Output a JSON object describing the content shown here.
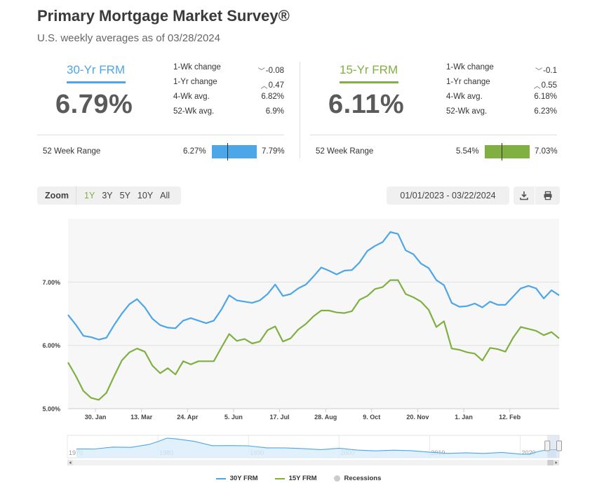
{
  "header": {
    "title": "Primary Mortgage Market Survey®",
    "subtitle": "U.S. weekly averages as of 03/28/2024"
  },
  "rates": [
    {
      "name": "30-Yr FRM",
      "color": "#4da6e8",
      "value": "6.79%",
      "stats": [
        {
          "label": "1-Wk change",
          "dir": "down",
          "value": "-0.08"
        },
        {
          "label": "1-Yr change",
          "dir": "up",
          "value": "0.47"
        },
        {
          "label": "4-Wk avg.",
          "dir": "",
          "value": "6.82%"
        },
        {
          "label": "52-Wk avg.",
          "dir": "",
          "value": "6.9%"
        }
      ],
      "range_label": "52 Week Range",
      "range_min": "6.27%",
      "range_max": "7.79%",
      "range_current": 6.79,
      "range_low": 6.27,
      "range_high": 7.79
    },
    {
      "name": "15-Yr FRM",
      "color": "#7fb041",
      "value": "6.11%",
      "stats": [
        {
          "label": "1-Wk change",
          "dir": "down",
          "value": "-0.1"
        },
        {
          "label": "1-Yr change",
          "dir": "up",
          "value": "0.55"
        },
        {
          "label": "4-Wk avg.",
          "dir": "",
          "value": "6.18%"
        },
        {
          "label": "52-Wk avg.",
          "dir": "",
          "value": "6.23%"
        }
      ],
      "range_label": "52 Week Range",
      "range_min": "5.54%",
      "range_max": "7.03%",
      "range_current": 6.11,
      "range_low": 5.54,
      "range_high": 7.03
    }
  ],
  "toolbar": {
    "zoom_label": "Zoom",
    "zoom_options": [
      "1Y",
      "3Y",
      "5Y",
      "10Y",
      "All"
    ],
    "zoom_active": "1Y",
    "date_range": "01/01/2023 - 03/22/2024",
    "download_icon": "download-icon",
    "print_icon": "print-icon"
  },
  "chart_data": {
    "type": "line",
    "x_start": "2023-01-05",
    "x_end": "2024-03-28",
    "x_ticks": [
      {
        "date": "2023-01-30",
        "label": "30. Jan"
      },
      {
        "date": "2023-03-13",
        "label": "13. Mar"
      },
      {
        "date": "2023-04-24",
        "label": "24. Apr"
      },
      {
        "date": "2023-06-05",
        "label": "5. Jun"
      },
      {
        "date": "2023-07-17",
        "label": "17. Jul"
      },
      {
        "date": "2023-08-28",
        "label": "28. Aug"
      },
      {
        "date": "2023-10-09",
        "label": "9. Oct"
      },
      {
        "date": "2023-11-20",
        "label": "20. Nov"
      },
      {
        "date": "2024-01-01",
        "label": "1. Jan"
      },
      {
        "date": "2024-02-12",
        "label": "12. Feb"
      }
    ],
    "y_ticks": [
      {
        "value": 5.0,
        "label": "5.00%"
      },
      {
        "value": 6.0,
        "label": "6.00%"
      },
      {
        "value": 7.0,
        "label": "7.00%"
      }
    ],
    "ylim": [
      5.0,
      8.0
    ],
    "grid": true,
    "series": [
      {
        "name": "30Y FRM",
        "color": "#4da6e8",
        "values": [
          6.48,
          6.33,
          6.15,
          6.13,
          6.09,
          6.12,
          6.32,
          6.5,
          6.65,
          6.73,
          6.6,
          6.42,
          6.32,
          6.28,
          6.27,
          6.39,
          6.43,
          6.39,
          6.35,
          6.39,
          6.57,
          6.79,
          6.71,
          6.69,
          6.67,
          6.71,
          6.81,
          6.96,
          6.78,
          6.81,
          6.9,
          6.96,
          7.09,
          7.23,
          7.18,
          7.12,
          7.18,
          7.19,
          7.31,
          7.49,
          7.57,
          7.63,
          7.79,
          7.76,
          7.5,
          7.44,
          7.29,
          7.22,
          7.03,
          6.95,
          6.67,
          6.61,
          6.62,
          6.66,
          6.6,
          6.69,
          6.64,
          6.64,
          6.77,
          6.9,
          6.94,
          6.9,
          6.74,
          6.87,
          6.79
        ]
      },
      {
        "name": "15Y FRM",
        "color": "#7fb041",
        "values": [
          5.73,
          5.52,
          5.28,
          5.17,
          5.14,
          5.25,
          5.51,
          5.76,
          5.89,
          5.95,
          5.9,
          5.68,
          5.56,
          5.64,
          5.54,
          5.75,
          5.7,
          5.75,
          5.75,
          5.75,
          5.97,
          6.18,
          6.07,
          6.1,
          6.03,
          6.06,
          6.24,
          6.3,
          6.06,
          6.11,
          6.25,
          6.34,
          6.46,
          6.55,
          6.55,
          6.52,
          6.51,
          6.54,
          6.72,
          6.78,
          6.89,
          6.92,
          7.03,
          7.03,
          6.81,
          6.76,
          6.69,
          6.56,
          6.29,
          6.38,
          5.95,
          5.93,
          5.89,
          5.87,
          5.76,
          5.96,
          5.94,
          5.9,
          6.12,
          6.29,
          6.26,
          6.23,
          6.16,
          6.21,
          6.11
        ]
      }
    ]
  },
  "navigator": {
    "x_labels": [
      "1970",
      "1980",
      "1990",
      "2000",
      "2010",
      "2020"
    ],
    "years": [
      1971,
      1973,
      1975,
      1977,
      1979,
      1980,
      1981,
      1982,
      1984,
      1986,
      1988,
      1990,
      1992,
      1994,
      1996,
      1998,
      2000,
      2002,
      2004,
      2006,
      2008,
      2010,
      2012,
      2014,
      2016,
      2018,
      2020,
      2021,
      2022,
      2023,
      2024
    ],
    "values": [
      7.5,
      7.4,
      9.0,
      8.8,
      11.2,
      13.7,
      16.6,
      16.0,
      13.9,
      10.2,
      10.3,
      10.1,
      8.4,
      8.4,
      7.8,
      6.9,
      8.1,
      6.5,
      5.8,
      6.4,
      6.0,
      4.7,
      3.7,
      4.2,
      3.7,
      4.5,
      3.1,
      3.0,
      5.3,
      6.8,
      6.8
    ],
    "ylim": [
      0,
      19
    ],
    "xlim": [
      1970,
      2024.3
    ]
  },
  "legend": [
    {
      "label": "30Y FRM",
      "color": "#4da6e8",
      "kind": "line"
    },
    {
      "label": "15Y FRM",
      "color": "#7fb041",
      "kind": "line"
    },
    {
      "label": "Recessions",
      "color": "#cccccc",
      "kind": "dot"
    }
  ]
}
